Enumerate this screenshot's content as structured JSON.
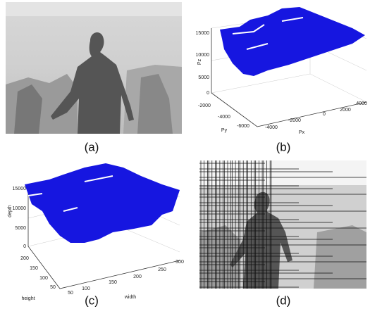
{
  "panels": [
    {
      "caption": "(a)"
    },
    {
      "caption": "(b)",
      "z_label": "Pz",
      "y_label": "Py",
      "x_label": "Px",
      "z_ticks": [
        "15000",
        "10000",
        "5000",
        "0"
      ],
      "y_ticks": [
        "-2000",
        "-4000",
        "-6000"
      ],
      "x_ticks": [
        "-4000",
        "-2000",
        "0",
        "2000",
        "4000"
      ]
    },
    {
      "caption": "(c)",
      "z_label": "depth",
      "y_label": "height",
      "x_label": "width",
      "z_ticks": [
        "15000",
        "10000",
        "5000",
        "0"
      ],
      "y_ticks": [
        "200",
        "150",
        "100",
        "50"
      ],
      "x_ticks": [
        "50",
        "100",
        "150",
        "200",
        "250",
        "300"
      ]
    },
    {
      "caption": "(d)"
    }
  ]
}
